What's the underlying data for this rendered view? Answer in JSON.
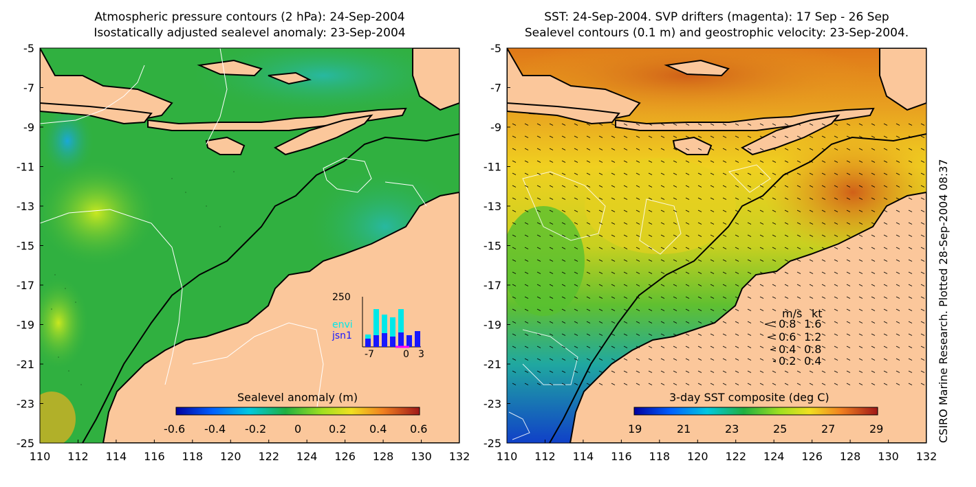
{
  "left_panel": {
    "title_line1": "Atmospheric pressure contours (2 hPa): 24-Sep-2004",
    "title_line2": "Isostatically adjusted sealevel anomaly: 23-Sep-2004",
    "colorbar_label": "Sealevel anomaly (m)",
    "colorbar_ticks": [
      "-0.6",
      "-0.4",
      "-0.2",
      "0",
      "0.2",
      "0.4",
      "0.6"
    ],
    "inset": {
      "y_top_label": "250",
      "x_labels": [
        "-7",
        "0",
        "3"
      ],
      "legend": [
        {
          "name": "envi",
          "color": "#00e8e8"
        },
        {
          "name": "jsn1",
          "color": "#1818ff"
        }
      ]
    }
  },
  "right_panel": {
    "title_line1": "SST: 24-Sep-2004. SVP drifters (magenta): 17 Sep - 26 Sep",
    "title_line2": "Sealevel contours (0.1 m) and geostrophic velocity: 23-Sep-2004.",
    "colorbar_label": "3-day SST composite (deg C)",
    "colorbar_ticks": [
      "19",
      "21",
      "23",
      "25",
      "27",
      "29"
    ],
    "velocity_legend": {
      "header_ms": "m/s",
      "header_kt": "kt",
      "rows": [
        {
          "ms": "0.8",
          "kt": "1.6"
        },
        {
          "ms": "0.6",
          "kt": "1.2"
        },
        {
          "ms": "0.4",
          "kt": "0.8"
        },
        {
          "ms": "0.2",
          "kt": "0.4"
        }
      ]
    }
  },
  "axes": {
    "lat_ticks": [
      "-5",
      "-7",
      "-9",
      "-11",
      "-13",
      "-15",
      "-17",
      "-19",
      "-21",
      "-23",
      "-25"
    ],
    "lon_ticks": [
      "110",
      "112",
      "114",
      "116",
      "118",
      "120",
      "122",
      "124",
      "126",
      "128",
      "130",
      "132"
    ]
  },
  "side_credit": "CSIRO Marine Research. Plotted 28-Sep-2004 08:37",
  "colors": {
    "land": "#fbc79b",
    "sea_green": "#30b040",
    "sst_orange": "#e89020",
    "inset_bar_light": "#00e8e8",
    "inset_bar_dark": "#1818ff"
  }
}
